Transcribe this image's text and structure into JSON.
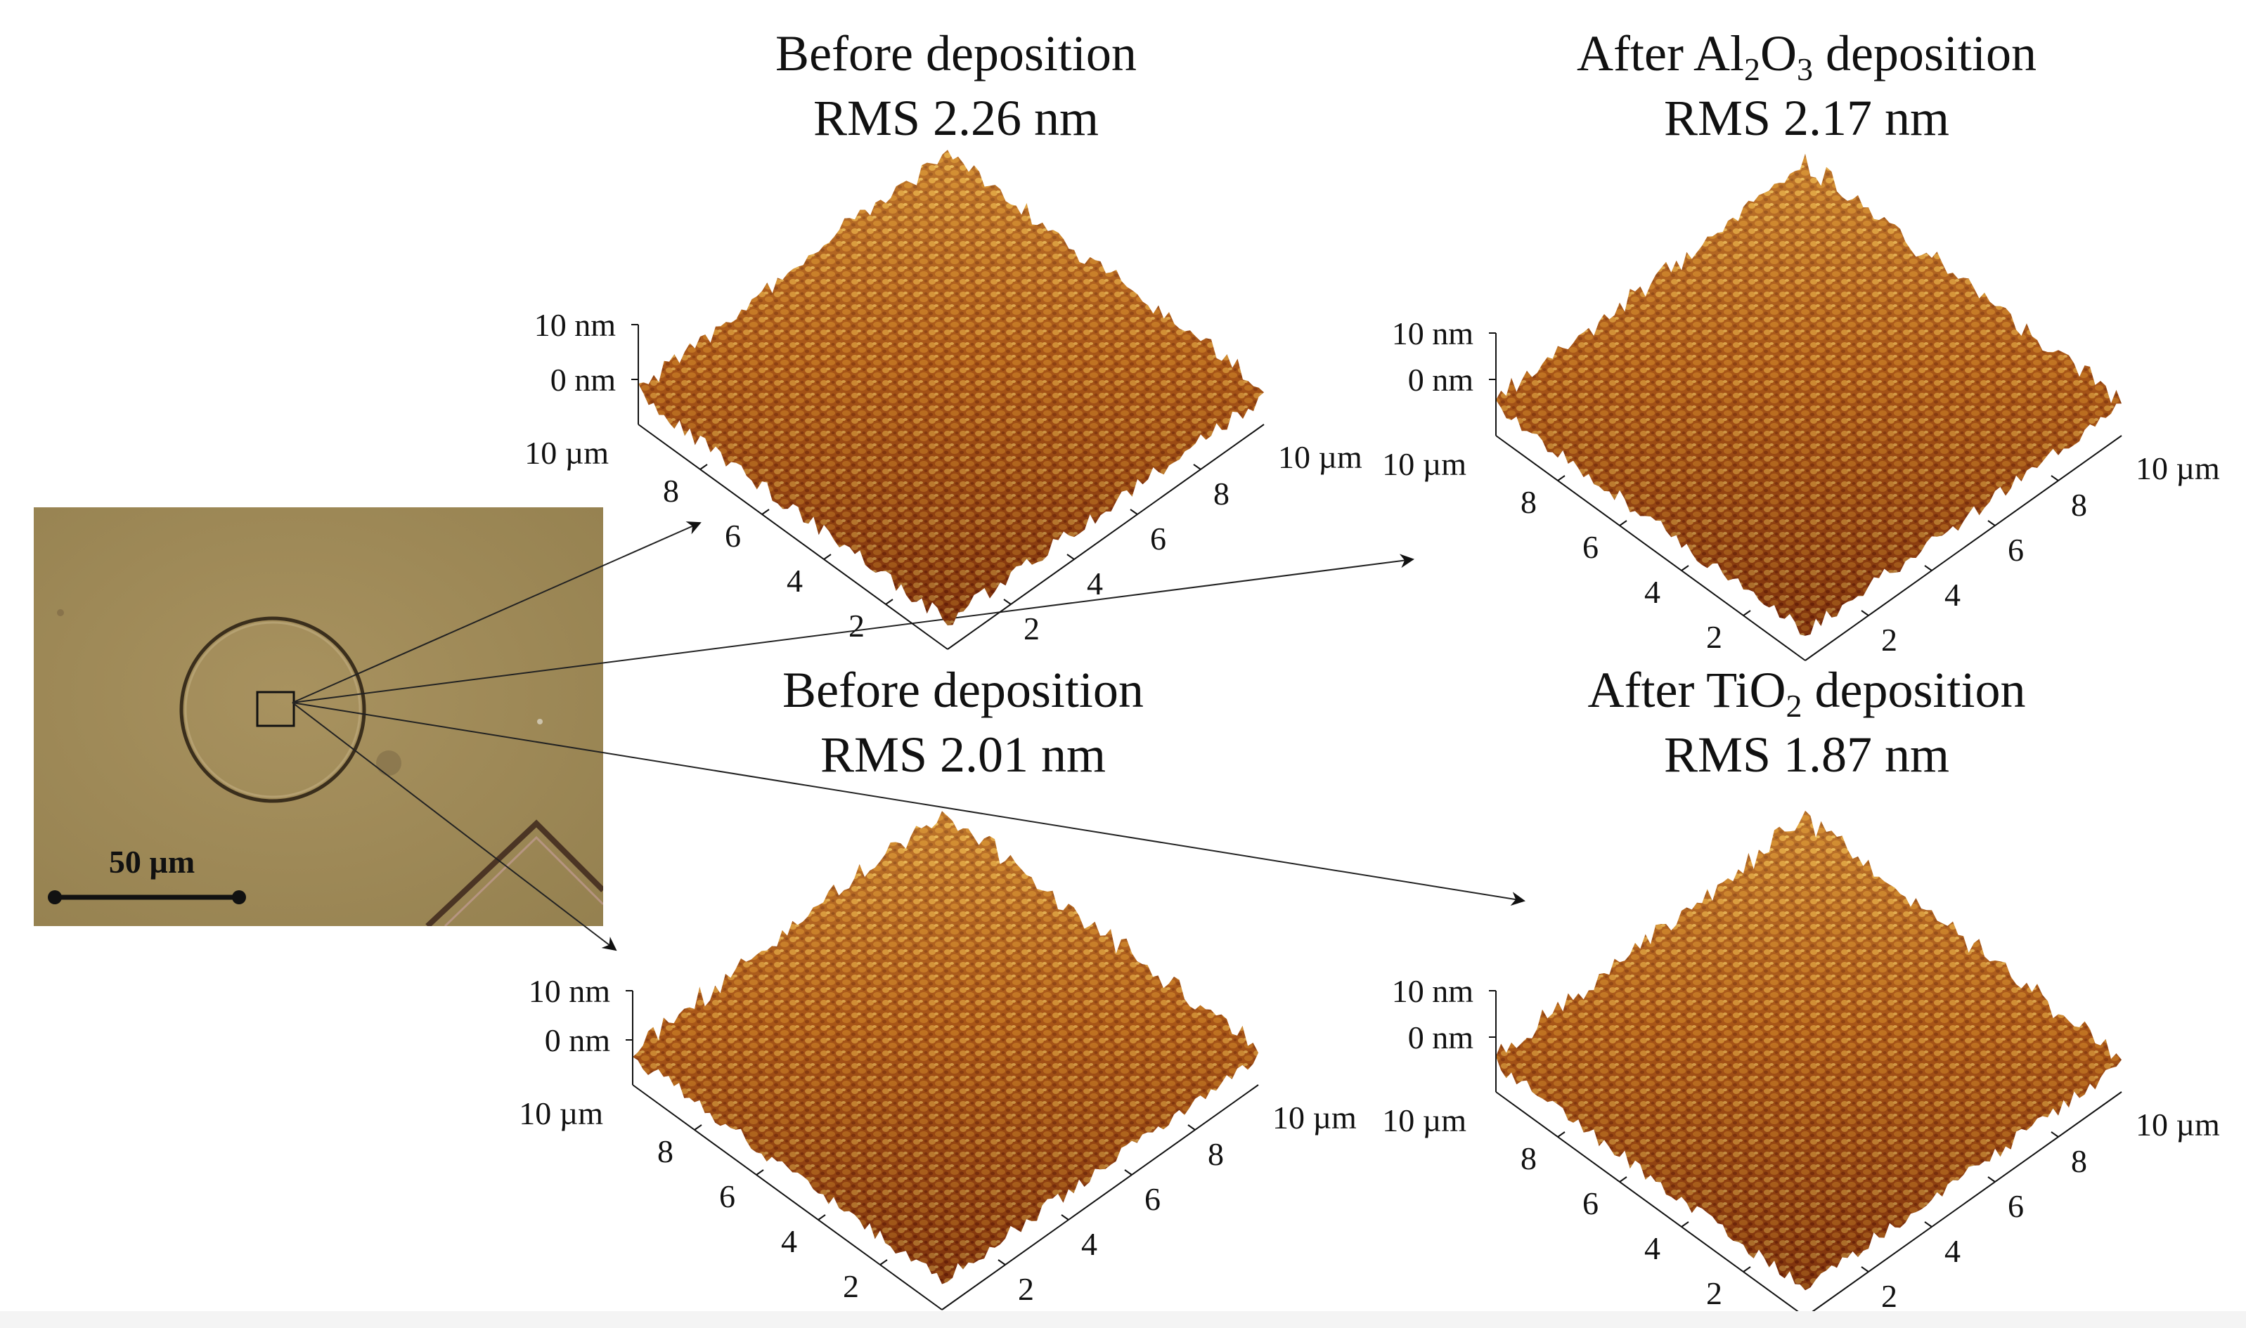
{
  "panels": [
    {
      "id": "tl",
      "title_line1": "Before deposition",
      "title_line2": "RMS 2.26 nm"
    },
    {
      "id": "tr",
      "title_prefix": "After Al",
      "sub1": "2",
      "title_mid": "O",
      "sub2": "3",
      "title_suffix": " deposition",
      "title_line2": "RMS 2.17 nm"
    },
    {
      "id": "bl",
      "title_line1": "Before deposition",
      "title_line2": "RMS 2.01 nm"
    },
    {
      "id": "br",
      "title_prefix": "After TiO",
      "sub1": "2",
      "title_suffix": " deposition",
      "title_line2": "RMS 1.87 nm"
    }
  ],
  "axis": {
    "z_top": "10 nm",
    "z_zero": "0 nm",
    "xy_max": "10 µm",
    "ticks": [
      "2",
      "4",
      "6",
      "8"
    ]
  },
  "micrograph": {
    "scale_bar": "50 µm"
  },
  "colors": {
    "surface_dark": "#5a1a05",
    "surface_mid": "#a54a12",
    "surface_light": "#e7b04a",
    "micro_bg": "#a08a5a"
  }
}
